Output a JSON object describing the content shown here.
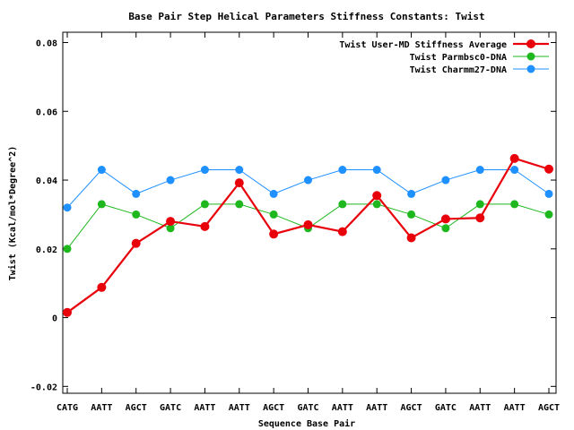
{
  "chart_data": {
    "type": "line",
    "title": "Base Pair Step Helical Parameters Stiffness Constants: Twist",
    "xlabel": "Sequence Base Pair",
    "ylabel": "Twist (Kcal/mol*Degree^2)",
    "ylim": [
      -0.022,
      0.083
    ],
    "yticks": [
      -0.02,
      0,
      0.02,
      0.04,
      0.06,
      0.08
    ],
    "ytick_labels": [
      "-0.02",
      "0",
      "0.02",
      "0.04",
      "0.06",
      "0.08"
    ],
    "categories": [
      "CATG",
      "AATT",
      "AGCT",
      "GATC",
      "AATT",
      "AATT",
      "AGCT",
      "GATC",
      "AATT",
      "AATT",
      "AGCT",
      "GATC",
      "AATT",
      "AATT",
      "AGCT"
    ],
    "grid": false,
    "legend_position": "top-right",
    "series": [
      {
        "name": "Twist User-MD Stiffness Average",
        "color": "#e8000b",
        "values": [
          0.0015,
          0.0088,
          0.0216,
          0.028,
          0.0265,
          0.0392,
          0.0243,
          0.027,
          0.025,
          0.0355,
          0.0232,
          0.0287,
          0.029,
          0.0463,
          0.0432
        ]
      },
      {
        "name": "Twist Parmbsc0-DNA",
        "color": "#1eb81e",
        "values": [
          0.02,
          0.033,
          0.03,
          0.026,
          0.033,
          0.033,
          0.03,
          0.026,
          0.033,
          0.033,
          0.03,
          0.026,
          0.033,
          0.033,
          0.03
        ]
      },
      {
        "name": "Twist Charmm27-DNA",
        "color": "#1e90ff",
        "values": [
          0.032,
          0.043,
          0.036,
          0.04,
          0.043,
          0.043,
          0.036,
          0.04,
          0.043,
          0.043,
          0.036,
          0.04,
          0.043,
          0.043,
          0.036
        ]
      }
    ]
  }
}
